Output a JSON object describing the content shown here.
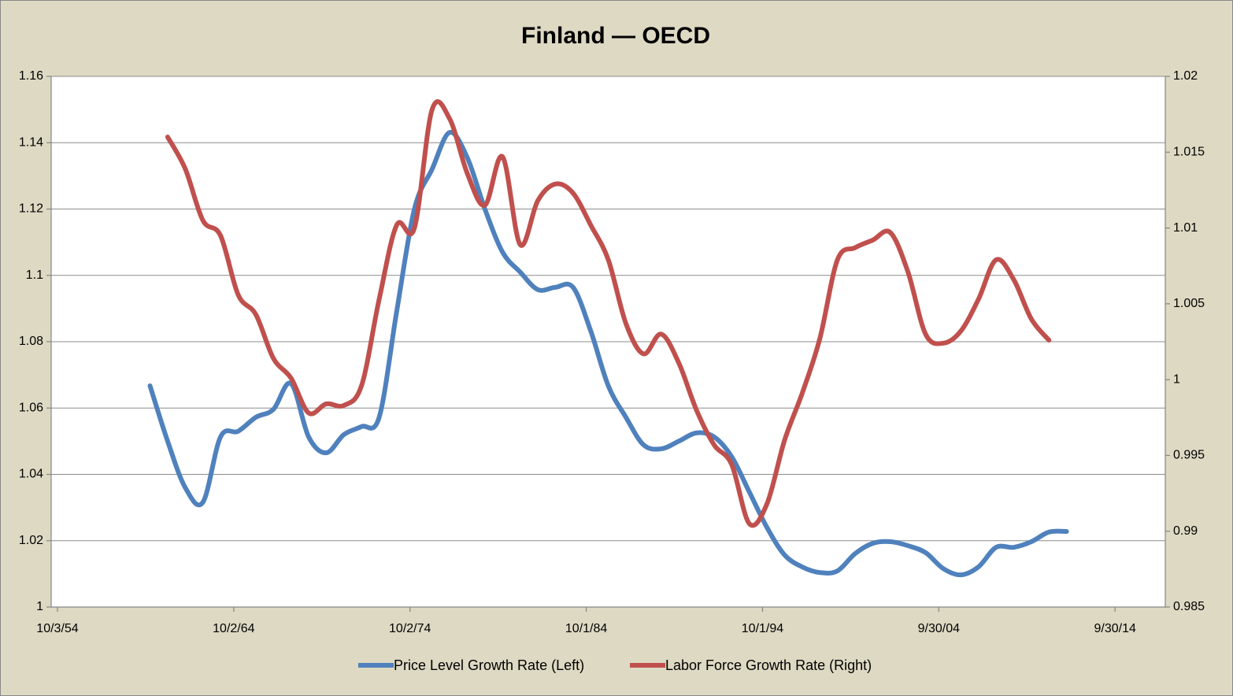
{
  "chart_data": {
    "type": "line",
    "title": "Finland — OECD",
    "x": [
      1960,
      1961,
      1962,
      1963,
      1964,
      1965,
      1966,
      1967,
      1968,
      1969,
      1970,
      1971,
      1972,
      1973,
      1974,
      1975,
      1976,
      1977,
      1978,
      1979,
      1980,
      1981,
      1982,
      1983,
      1984,
      1985,
      1986,
      1987,
      1988,
      1989,
      1990,
      1991,
      1992,
      1993,
      1994,
      1995,
      1996,
      1997,
      1998,
      1999,
      2000,
      2001,
      2002,
      2003,
      2004,
      2005,
      2006,
      2007,
      2008,
      2009,
      2010,
      2011,
      2012
    ],
    "series": [
      {
        "name": "Price Level Growth Rate (Left)",
        "color": "#4f81bd",
        "axis": "y",
        "values": [
          1.0667,
          1.05,
          1.036,
          1.0316,
          1.0513,
          1.053,
          1.0572,
          1.0596,
          1.0674,
          1.0513,
          1.0465,
          1.052,
          1.0544,
          1.0572,
          1.0893,
          1.12,
          1.132,
          1.1431,
          1.1355,
          1.12,
          1.107,
          1.101,
          1.0957,
          1.0964,
          1.0964,
          1.0833,
          1.0667,
          1.0572,
          1.0489,
          1.0477,
          1.05,
          1.0525,
          1.0513,
          1.0453,
          1.0347,
          1.024,
          1.0157,
          1.0121,
          1.0104,
          1.0109,
          1.0161,
          1.0192,
          1.0197,
          1.0185,
          1.0164,
          1.0116,
          1.0097,
          1.0121,
          1.018,
          1.018,
          1.0197,
          1.0226,
          1.0228
        ]
      },
      {
        "name": "Labor Force Growth Rate (Right)",
        "color": "#c0504d",
        "axis": "y2",
        "values": [
          null,
          1.016,
          1.0139,
          1.0105,
          1.0095,
          1.0056,
          1.0043,
          1.0014,
          1.0001,
          0.9978,
          0.9984,
          0.9983,
          0.9996,
          1.0053,
          1.0102,
          1.01,
          1.0178,
          1.0172,
          1.0136,
          1.0115,
          1.0147,
          1.0089,
          1.0118,
          1.0129,
          1.0123,
          1.0102,
          1.0079,
          1.0037,
          1.0017,
          1.003,
          1.0011,
          0.998,
          0.9957,
          0.9944,
          0.9905,
          0.9918,
          0.996,
          0.9991,
          1.0027,
          1.0079,
          1.0087,
          1.0092,
          1.0097,
          1.0071,
          1.003,
          1.0024,
          1.0032,
          1.0053,
          1.0079,
          1.0066,
          1.004,
          1.0026,
          null
        ]
      }
    ],
    "xlim": [
      1954.75,
      2017.6
    ],
    "xticks": [
      {
        "value": 1954.75,
        "label": "10/3/54"
      },
      {
        "value": 1964.75,
        "label": "10/2/64"
      },
      {
        "value": 1974.75,
        "label": "10/2/74"
      },
      {
        "value": 1984.75,
        "label": "10/1/84"
      },
      {
        "value": 1994.75,
        "label": "10/1/94"
      },
      {
        "value": 2004.75,
        "label": "9/30/04"
      },
      {
        "value": 2014.75,
        "label": "9/30/14"
      }
    ],
    "ylim": [
      1,
      1.16
    ],
    "yticks": [
      1,
      1.02,
      1.04,
      1.06,
      1.08,
      1.1,
      1.12,
      1.14,
      1.16
    ],
    "y2lim": [
      0.985,
      1.02
    ],
    "y2ticks": [
      0.985,
      0.99,
      0.995,
      1,
      1.005,
      1.01,
      1.015,
      1.02
    ],
    "grid": true,
    "legend": "bottom"
  }
}
